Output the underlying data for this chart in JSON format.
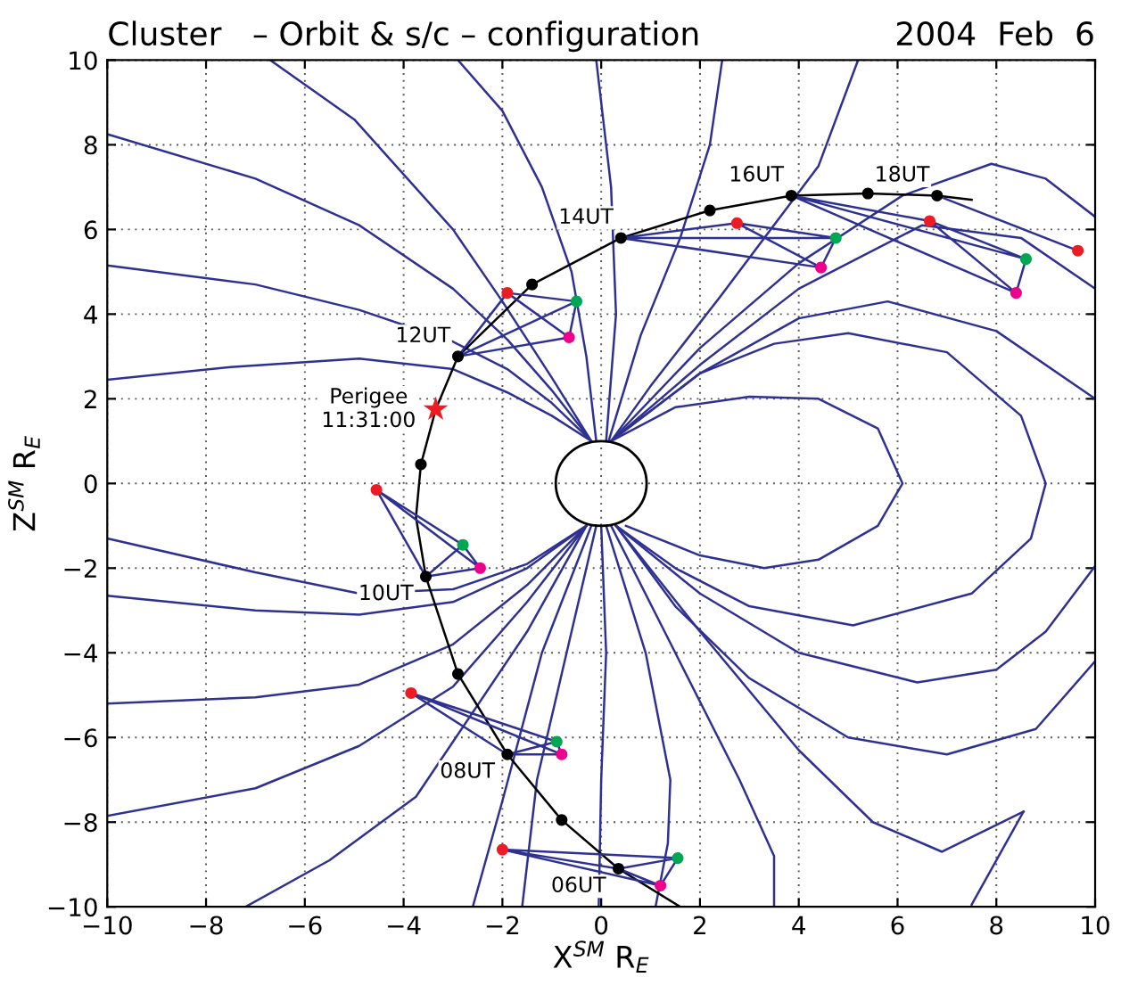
{
  "chart_data": {
    "type": "line",
    "title": "Cluster   – Orbit & s/c – configuration",
    "subtitle": "2004  Feb  6",
    "xlabel": "X$^{SM}$ R$_{E}$",
    "ylabel": "Z$^{SM}$ R$_{E}$",
    "xlim": [
      -10,
      10
    ],
    "ylim": [
      -10,
      10
    ],
    "xticks": [
      -10,
      -8,
      -6,
      -4,
      -2,
      0,
      2,
      4,
      6,
      8,
      10
    ],
    "yticks": [
      -10,
      -8,
      -6,
      -4,
      -2,
      0,
      2,
      4,
      6,
      8,
      10
    ],
    "grid": true,
    "marker": "none",
    "line_style": "solid",
    "annotations": [
      {
        "text": "06UT",
        "x": 0.35,
        "y": -9.1
      },
      {
        "text": "08UT",
        "x": -1.9,
        "y": -6.4
      },
      {
        "text": "10UT",
        "x": -3.55,
        "y": -2.2
      },
      {
        "text": "12UT",
        "x": -2.9,
        "y": 3.0
      },
      {
        "text": "14UT",
        "x": 0.4,
        "y": 5.8
      },
      {
        "text": "16UT",
        "x": 3.85,
        "y": 6.8
      },
      {
        "text": "18UT",
        "x": 6.8,
        "y": 6.8
      },
      {
        "text": "Perigee\n11:31:00",
        "x": -3.35,
        "y": 1.75
      }
    ],
    "series": [
      {
        "color": "#2e3192",
        "x": [
          -10,
          -7.5,
          -4.9,
          -3,
          -1.9,
          -1,
          -0.2
        ],
        "values": [
          2.45,
          2.75,
          2.95,
          2.7,
          2.15,
          1.6,
          1.0
        ]
      },
      {
        "color": "#2e3192",
        "x": [
          -10,
          -7,
          -4.9,
          -3,
          -1.9,
          -1,
          -0.2
        ],
        "values": [
          5.15,
          4.7,
          4.1,
          3.35,
          2.7,
          1.9,
          1.0
        ]
      },
      {
        "color": "#2e3192",
        "x": [
          -10,
          -7,
          -4.9,
          -3,
          -1.9,
          -1,
          -0.2
        ],
        "values": [
          8.25,
          7.2,
          6.1,
          4.6,
          3.4,
          2.2,
          1.0
        ]
      },
      {
        "color": "#2e3192",
        "x": [
          -6.7,
          -5,
          -3,
          -2,
          -1,
          -0.2
        ],
        "values": [
          10,
          8.6,
          6.0,
          4.3,
          2.5,
          1.0
        ]
      },
      {
        "color": "#2e3192",
        "x": [
          -2.9,
          -2,
          -1.2,
          -0.6,
          -0.3,
          -0.1
        ],
        "values": [
          10,
          8.8,
          7,
          5,
          3,
          1.0
        ]
      },
      {
        "color": "#2e3192",
        "x": [
          -0.1,
          0.2,
          0.3,
          0.1
        ],
        "values": [
          10,
          7,
          4,
          1.0
        ]
      },
      {
        "color": "#2e3192",
        "x": [
          2.45,
          2.2,
          1.6,
          0.8,
          0.15
        ],
        "values": [
          10,
          8,
          5.8,
          3.5,
          1.0
        ]
      },
      {
        "color": "#2e3192",
        "x": [
          5.2,
          4.4,
          2.4,
          1,
          0.2
        ],
        "values": [
          10,
          7.5,
          4.4,
          2.3,
          1.0
        ]
      },
      {
        "color": "#2e3192",
        "x": [
          0.2,
          2,
          4,
          6.1,
          7.9,
          9,
          10
        ],
        "values": [
          1.0,
          3.2,
          5.2,
          6.8,
          7.55,
          7.2,
          6.3
        ]
      },
      {
        "color": "#2e3192",
        "x": [
          0.2,
          2,
          4,
          6.5,
          8.5,
          10
        ],
        "values": [
          1.0,
          2.8,
          4.6,
          6.1,
          5.8,
          4.6
        ]
      },
      {
        "color": "#2e3192",
        "x": [
          0.2,
          2,
          4,
          5.8,
          8,
          10
        ],
        "values": [
          1.0,
          2.6,
          3.9,
          4.3,
          3.6,
          2.0
        ]
      },
      {
        "color": "#2e3192",
        "x": [
          0.2,
          2,
          3.5,
          5,
          7,
          8.5,
          9,
          8.7,
          7.5,
          5.1,
          3,
          1.5,
          0.3
        ],
        "values": [
          1,
          2.6,
          3.3,
          3.55,
          3.1,
          1.6,
          0,
          -1.3,
          -2.6,
          -3.35,
          -2.9,
          -2.0,
          -1.0
        ]
      },
      {
        "color": "#2e3192",
        "x": [
          0.2,
          1.5,
          3,
          4.4,
          5.6,
          6.1,
          5.6,
          4.4,
          3.3,
          2,
          0.5
        ],
        "values": [
          1.0,
          1.8,
          2.05,
          2.0,
          1.3,
          0,
          -1.0,
          -1.8,
          -2.0,
          -1.7,
          -1.0
        ]
      },
      {
        "color": "#2e3192",
        "x": [
          10,
          9,
          8,
          6.4,
          4,
          2,
          0.3
        ],
        "values": [
          -1.95,
          -3.5,
          -4.4,
          -4.7,
          -4.0,
          -2.6,
          -1.0
        ]
      },
      {
        "color": "#2e3192",
        "x": [
          10,
          8.8,
          7,
          5,
          3,
          1.5,
          0.3
        ],
        "values": [
          -4.2,
          -5.8,
          -6.4,
          -6.0,
          -4.6,
          -2.9,
          -1.0
        ]
      },
      {
        "color": "#2e3192",
        "x": [
          0.3,
          2,
          4,
          5.5,
          6.9,
          8.55
        ],
        "values": [
          -1,
          -3.5,
          -6.3,
          -8.0,
          -8.7,
          -7.75
        ]
      },
      {
        "color": "#2e3192",
        "x": [
          8.55,
          7.5
        ],
        "values": [
          -7.75,
          -9.95
        ]
      },
      {
        "color": "#2e3192",
        "x": [
          0.2,
          1.5,
          2.8,
          3.5,
          3.5
        ],
        "values": [
          -1,
          -4,
          -7,
          -8.8,
          -10
        ]
      },
      {
        "color": "#2e3192",
        "x": [
          0.1,
          0.9,
          1.4,
          1.35,
          1.1
        ],
        "values": [
          -1,
          -4,
          -7,
          -8.5,
          -10
        ]
      },
      {
        "color": "#2e3192",
        "x": [
          0,
          0.1,
          0,
          -0.05
        ],
        "values": [
          -1,
          -4,
          -7,
          -10
        ]
      },
      {
        "color": "#2e3192",
        "x": [
          -0.1,
          -0.7,
          -1.3,
          -1.6
        ],
        "values": [
          -1,
          -4,
          -7,
          -10
        ]
      },
      {
        "color": "#2e3192",
        "x": [
          -0.2,
          -1.2,
          -2.0,
          -2.6
        ],
        "values": [
          -1,
          -4,
          -7.5,
          -10
        ]
      },
      {
        "color": "#2e3192",
        "x": [
          -0.3,
          -1.5,
          -3.75,
          -5.5,
          -7.2
        ],
        "values": [
          -1,
          -3.5,
          -7.4,
          -8.9,
          -10
        ]
      },
      {
        "color": "#2e3192",
        "x": [
          -10,
          -7,
          -4.9,
          -3,
          -1.5,
          -0.3
        ],
        "values": [
          -7.85,
          -7.2,
          -6.2,
          -4.8,
          -2.8,
          -1.0
        ]
      },
      {
        "color": "#2e3192",
        "x": [
          -10,
          -7,
          -4.9,
          -3,
          -1.5,
          -0.3
        ],
        "values": [
          -5.2,
          -5.05,
          -4.75,
          -3.8,
          -2.4,
          -1.0
        ]
      },
      {
        "color": "#2e3192",
        "x": [
          -10,
          -7,
          -4.9,
          -3,
          -1.5,
          -0.3
        ],
        "values": [
          -2.65,
          -3.0,
          -3.1,
          -2.8,
          -2.0,
          -1.0
        ]
      },
      {
        "color": "#2e3192",
        "x": [
          -10,
          -7,
          -4.9,
          -3,
          -1.5,
          -0.3
        ],
        "values": [
          -1.3,
          -2.1,
          -2.6,
          -2.5,
          -1.9,
          -1.0
        ]
      },
      {
        "color": "#000000",
        "x": [
          1.6,
          0.35,
          -0.8,
          -1.9,
          -2.9,
          -3.55,
          -3.75,
          -3.65,
          -3.35,
          -2.9,
          -1.4,
          0.4,
          2.2,
          3.85,
          5.4,
          6.8,
          7.5
        ],
        "values": [
          -10,
          -9.1,
          -7.95,
          -6.4,
          -4.5,
          -2.2,
          -0.8,
          0.45,
          1.75,
          3.0,
          4.7,
          5.8,
          6.45,
          6.8,
          6.85,
          6.8,
          6.7
        ]
      },
      {
        "color": "#2e3192",
        "x": [
          0.35,
          -2.0,
          1.55,
          0.35,
          1.2,
          -2.0,
          null,
          1.55,
          1.2
        ],
        "values": [
          -9.1,
          -8.65,
          -8.85,
          -9.1,
          -9.5,
          -8.65,
          null,
          -8.85,
          -9.5
        ]
      },
      {
        "color": "#2e3192",
        "x": [
          -1.9,
          -3.85,
          -0.9,
          -1.9,
          -0.8,
          -3.85,
          null,
          -0.9,
          -0.8
        ],
        "values": [
          -6.4,
          -4.95,
          -6.1,
          -6.4,
          -6.4,
          -4.95,
          null,
          -6.1,
          -6.4
        ]
      },
      {
        "color": "#2e3192",
        "x": [
          -3.55,
          -4.55,
          -2.8,
          -3.55,
          -2.45,
          -4.55,
          null,
          -2.8,
          -2.45
        ],
        "values": [
          -2.2,
          -0.15,
          -1.45,
          -2.2,
          -2.0,
          -0.15,
          null,
          -1.45,
          -2.0
        ]
      },
      {
        "color": "#2e3192",
        "x": [
          -2.9,
          -1.9,
          -0.5,
          -2.9,
          -0.65,
          -1.9,
          null,
          -0.5,
          -0.65
        ],
        "values": [
          3.0,
          4.5,
          4.3,
          3.0,
          3.45,
          4.5,
          null,
          4.3,
          3.45
        ]
      },
      {
        "color": "#2e3192",
        "x": [
          0.4,
          2.75,
          4.75,
          0.4,
          4.45,
          2.75,
          null,
          4.75,
          4.45
        ],
        "values": [
          5.8,
          6.15,
          5.8,
          5.8,
          5.1,
          6.15,
          null,
          5.8,
          5.1
        ]
      },
      {
        "color": "#2e3192",
        "x": [
          3.85,
          6.65,
          8.6,
          3.85,
          8.4,
          6.65,
          null,
          8.6,
          8.4
        ],
        "values": [
          6.8,
          6.2,
          5.3,
          6.8,
          4.5,
          6.2,
          null,
          5.3,
          4.5
        ]
      },
      {
        "color": "#2e3192",
        "x": [
          6.8,
          9.65
        ],
        "values": [
          6.8,
          5.5
        ]
      },
      {
        "type": "scatter",
        "marker": "circle",
        "color": "#000000",
        "x": [
          0.35,
          -0.8,
          -1.9,
          -2.9,
          -3.55,
          -3.65,
          -2.9,
          -1.4,
          0.4,
          2.2,
          3.85,
          5.4,
          6.8
        ],
        "values": [
          -9.1,
          -7.95,
          -6.4,
          -4.5,
          -2.2,
          0.45,
          3.0,
          4.7,
          5.8,
          6.45,
          6.8,
          6.85,
          6.8
        ]
      },
      {
        "type": "scatter",
        "marker": "circle",
        "color": "#ed1c24",
        "x": [
          -2.0,
          -3.85,
          -4.55,
          -1.9,
          2.75,
          6.65,
          9.65
        ],
        "values": [
          -8.65,
          -4.95,
          -0.15,
          4.5,
          6.15,
          6.2,
          5.5
        ]
      },
      {
        "type": "scatter",
        "marker": "circle",
        "color": "#00a651",
        "x": [
          1.55,
          -0.9,
          -2.8,
          -0.5,
          4.75,
          8.6
        ],
        "values": [
          -8.85,
          -6.1,
          -1.45,
          4.3,
          5.8,
          5.3
        ]
      },
      {
        "type": "scatter",
        "marker": "circle",
        "color": "#ec008c",
        "x": [
          1.2,
          -0.8,
          -2.45,
          -0.65,
          4.45,
          8.4
        ],
        "values": [
          -9.5,
          -6.4,
          -2.0,
          3.45,
          5.1,
          4.5
        ]
      },
      {
        "type": "scatter",
        "marker": "star",
        "color": "#ed1c24",
        "x": [
          -3.35
        ],
        "values": [
          1.75
        ]
      }
    ]
  }
}
